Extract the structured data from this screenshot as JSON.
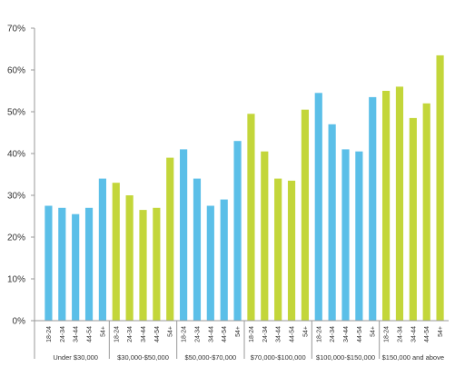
{
  "chart_data": {
    "type": "bar",
    "title": "",
    "xlabel": "",
    "ylabel": "",
    "ylim": [
      0,
      70
    ],
    "yticks": [
      "0%",
      "10%",
      "20%",
      "30%",
      "40%",
      "50%",
      "60%",
      "70%"
    ],
    "grid": false,
    "colors": {
      "blue": "#5bbfe8",
      "green": "#c3d63a"
    },
    "groups": [
      {
        "name": "Under $30,000",
        "color": "blue",
        "bars": [
          {
            "label": "18-24",
            "value": 27.5
          },
          {
            "label": "24-34",
            "value": 27
          },
          {
            "label": "34-44",
            "value": 25.5
          },
          {
            "label": "44-54",
            "value": 27
          },
          {
            "label": "54+",
            "value": 34
          }
        ]
      },
      {
        "name": "$30,000-$50,000",
        "color": "green",
        "bars": [
          {
            "label": "18-24",
            "value": 33
          },
          {
            "label": "24-34",
            "value": 30
          },
          {
            "label": "34-44",
            "value": 26.5
          },
          {
            "label": "44-54",
            "value": 27
          },
          {
            "label": "54+",
            "value": 39
          }
        ]
      },
      {
        "name": "$50,000-$70,000",
        "color": "blue",
        "bars": [
          {
            "label": "18-24",
            "value": 41
          },
          {
            "label": "24-34",
            "value": 34
          },
          {
            "label": "34-44",
            "value": 27.5
          },
          {
            "label": "44-54",
            "value": 29
          },
          {
            "label": "54+",
            "value": 43
          }
        ]
      },
      {
        "name": "$70,000-$100,000",
        "color": "green",
        "bars": [
          {
            "label": "18-24",
            "value": 49.5
          },
          {
            "label": "24-34",
            "value": 40.5
          },
          {
            "label": "34-44",
            "value": 34
          },
          {
            "label": "44-54",
            "value": 33.5
          },
          {
            "label": "54+",
            "value": 50.5
          }
        ]
      },
      {
        "name": "$100,000-$150,000",
        "color": "blue",
        "bars": [
          {
            "label": "18-24",
            "value": 54.5
          },
          {
            "label": "24-34",
            "value": 47
          },
          {
            "label": "34-44",
            "value": 41
          },
          {
            "label": "44-54",
            "value": 40.5
          },
          {
            "label": "54+",
            "value": 53.5
          }
        ]
      },
      {
        "name": "$150,000 and above",
        "color": "green",
        "bars": [
          {
            "label": "18-24",
            "value": 55
          },
          {
            "label": "24-34",
            "value": 56
          },
          {
            "label": "34-44",
            "value": 48.5
          },
          {
            "label": "44-54",
            "value": 52
          },
          {
            "label": "54+",
            "value": 63.5
          }
        ]
      }
    ]
  }
}
